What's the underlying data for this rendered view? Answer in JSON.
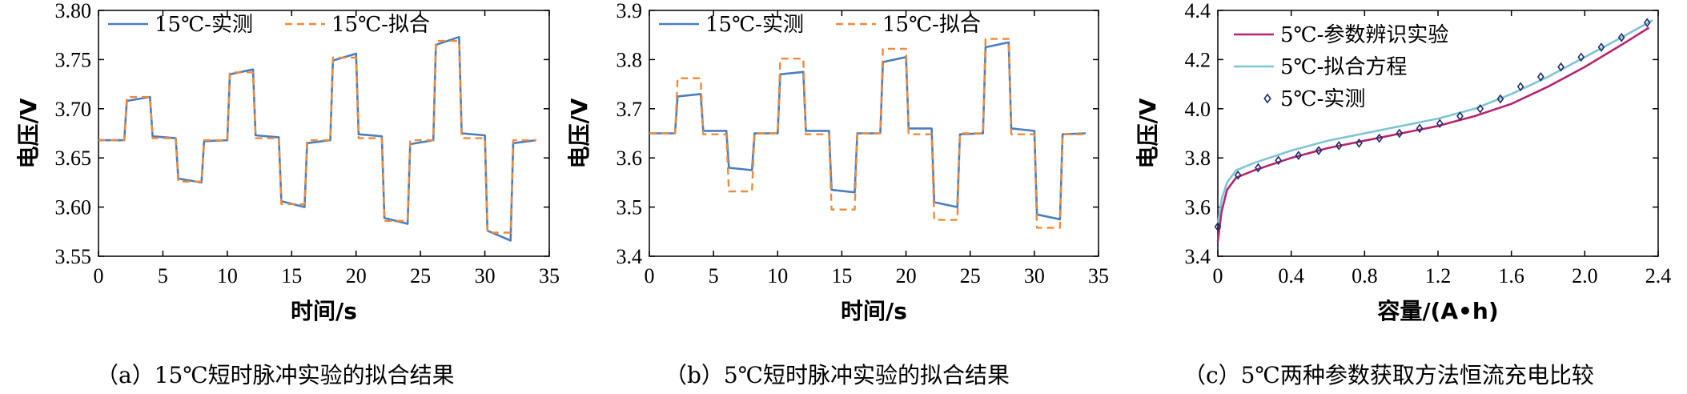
{
  "colors": {
    "measured": "#4a7ebf",
    "fit": "#ee8b3a",
    "exp": "#b5256f",
    "eq": "#7fc4d6",
    "marker": "#1f2f6b"
  },
  "chart_data": [
    {
      "type": "line",
      "caption": "（a）15℃短时脉冲实验的拟合结果",
      "xlabel": "时间/s",
      "ylabel": "电压/V",
      "xlim": [
        0,
        35
      ],
      "ylim": [
        3.55,
        3.8
      ],
      "xticks": [
        "0",
        "5",
        "10",
        "15",
        "20",
        "25",
        "30",
        "35"
      ],
      "yticks": [
        "3.55",
        "3.60",
        "3.65",
        "3.70",
        "3.75",
        "3.80"
      ],
      "legend_position": "top",
      "series": [
        {
          "name": "15℃-实测",
          "style": "solid",
          "color": "#4a7ebf",
          "x": [
            0,
            2,
            2.2,
            4,
            4.2,
            6,
            6.2,
            8,
            8.2,
            10,
            10.2,
            12,
            12.2,
            14,
            14.2,
            16,
            16.2,
            18,
            18.2,
            20,
            20.2,
            22,
            22.2,
            24,
            24.2,
            26,
            26.2,
            28,
            28.2,
            30,
            30.2,
            32,
            32.2,
            34
          ],
          "y": [
            3.668,
            3.668,
            3.708,
            3.712,
            3.672,
            3.67,
            3.629,
            3.625,
            3.667,
            3.668,
            3.735,
            3.74,
            3.673,
            3.671,
            3.606,
            3.6,
            3.665,
            3.668,
            3.749,
            3.756,
            3.674,
            3.672,
            3.589,
            3.583,
            3.664,
            3.668,
            3.765,
            3.773,
            3.675,
            3.673,
            3.576,
            3.566,
            3.665,
            3.668
          ]
        },
        {
          "name": "15℃-拟合",
          "style": "dashed",
          "color": "#ee8b3a",
          "x": [
            0,
            2,
            2.2,
            4,
            4.2,
            6,
            6.2,
            8,
            8.2,
            10,
            10.2,
            12,
            12.2,
            14,
            14.2,
            16,
            16.2,
            18,
            18.2,
            20,
            20.2,
            22,
            22.2,
            24,
            24.2,
            26,
            26.2,
            28,
            28.2,
            30,
            30.2,
            32,
            32.2,
            34
          ],
          "y": [
            3.668,
            3.668,
            3.712,
            3.712,
            3.67,
            3.67,
            3.626,
            3.626,
            3.668,
            3.668,
            3.737,
            3.737,
            3.67,
            3.67,
            3.603,
            3.603,
            3.668,
            3.668,
            3.752,
            3.752,
            3.67,
            3.67,
            3.586,
            3.586,
            3.668,
            3.668,
            3.769,
            3.769,
            3.67,
            3.67,
            3.574,
            3.574,
            3.668,
            3.668
          ]
        }
      ]
    },
    {
      "type": "line",
      "caption": "（b）5℃短时脉冲实验的拟合结果",
      "xlabel": "时间/s",
      "ylabel": "电压/V",
      "xlim": [
        0,
        35
      ],
      "ylim": [
        3.4,
        3.9
      ],
      "xticks": [
        "0",
        "5",
        "10",
        "15",
        "20",
        "25",
        "30",
        "35"
      ],
      "yticks": [
        "3.4",
        "3.5",
        "3.6",
        "3.7",
        "3.8",
        "3.9"
      ],
      "legend_position": "top",
      "series": [
        {
          "name": "15℃-实测",
          "style": "solid",
          "color": "#4a7ebf",
          "x": [
            0,
            2,
            2.2,
            4,
            4.2,
            6,
            6.2,
            8,
            8.2,
            10,
            10.2,
            12,
            12.2,
            14,
            14.2,
            16,
            16.2,
            18,
            18.2,
            20,
            20.2,
            22,
            22.2,
            24,
            24.2,
            26,
            26.2,
            28,
            28.2,
            30,
            30.2,
            32,
            32.2,
            34
          ],
          "y": [
            3.65,
            3.65,
            3.725,
            3.73,
            3.655,
            3.655,
            3.58,
            3.575,
            3.65,
            3.65,
            3.77,
            3.775,
            3.655,
            3.655,
            3.535,
            3.53,
            3.65,
            3.65,
            3.795,
            3.805,
            3.66,
            3.66,
            3.51,
            3.5,
            3.648,
            3.65,
            3.825,
            3.835,
            3.66,
            3.655,
            3.485,
            3.475,
            3.648,
            3.65
          ]
        },
        {
          "name": "15℃-拟合",
          "style": "dashed",
          "color": "#ee8b3a",
          "x": [
            0,
            2,
            2.2,
            4,
            4.2,
            6,
            6.2,
            8,
            8.2,
            10,
            10.2,
            12,
            12.2,
            14,
            14.2,
            16,
            16.2,
            18,
            18.2,
            20,
            20.2,
            22,
            22.2,
            24,
            24.2,
            26,
            26.2,
            28,
            28.2,
            30,
            30.2,
            32,
            32.2,
            34
          ],
          "y": [
            3.65,
            3.65,
            3.762,
            3.762,
            3.648,
            3.648,
            3.532,
            3.532,
            3.65,
            3.65,
            3.802,
            3.802,
            3.648,
            3.648,
            3.495,
            3.495,
            3.65,
            3.65,
            3.822,
            3.822,
            3.648,
            3.648,
            3.474,
            3.474,
            3.65,
            3.65,
            3.842,
            3.842,
            3.648,
            3.648,
            3.458,
            3.458,
            3.648,
            3.648
          ]
        }
      ]
    },
    {
      "type": "line",
      "caption": "（c）5℃两种参数获取方法恒流充电比较",
      "xlabel": "容量/(A•h)",
      "ylabel": "电压/V",
      "xlim": [
        0,
        2.4
      ],
      "ylim": [
        3.4,
        4.4
      ],
      "xticks": [
        "0",
        "0.4",
        "0.8",
        "1.2",
        "1.6",
        "2.0",
        "2.4"
      ],
      "yticks": [
        "3.4",
        "3.6",
        "3.8",
        "4.0",
        "4.2",
        "4.4"
      ],
      "legend_position": "top-left",
      "series": [
        {
          "name": "5℃-参数辨识实验",
          "style": "solid",
          "color": "#b5256f",
          "x": [
            0,
            0.02,
            0.05,
            0.1,
            0.2,
            0.4,
            0.6,
            0.8,
            1.0,
            1.2,
            1.4,
            1.6,
            1.8,
            2.0,
            2.2,
            2.35
          ],
          "y": [
            3.46,
            3.58,
            3.67,
            3.72,
            3.75,
            3.8,
            3.84,
            3.87,
            3.9,
            3.93,
            3.97,
            4.02,
            4.09,
            4.17,
            4.26,
            4.33
          ]
        },
        {
          "name": "5℃-拟合方程",
          "style": "solid",
          "color": "#7fc4d6",
          "x": [
            0,
            0.02,
            0.05,
            0.1,
            0.2,
            0.4,
            0.6,
            0.8,
            1.0,
            1.2,
            1.4,
            1.6,
            1.8,
            2.0,
            2.2,
            2.37
          ],
          "y": [
            3.53,
            3.63,
            3.7,
            3.75,
            3.78,
            3.83,
            3.87,
            3.9,
            3.93,
            3.96,
            4.0,
            4.06,
            4.13,
            4.21,
            4.29,
            4.36
          ]
        },
        {
          "name": "5℃-实测",
          "style": "marker",
          "color": "#1f2f6b",
          "x": [
            0,
            0.11,
            0.22,
            0.33,
            0.44,
            0.55,
            0.66,
            0.77,
            0.88,
            0.99,
            1.1,
            1.21,
            1.32,
            1.43,
            1.54,
            1.65,
            1.76,
            1.87,
            1.98,
            2.09,
            2.2,
            2.34
          ],
          "y": [
            3.52,
            3.73,
            3.76,
            3.79,
            3.81,
            3.83,
            3.85,
            3.86,
            3.88,
            3.9,
            3.92,
            3.94,
            3.97,
            4.0,
            4.04,
            4.09,
            4.13,
            4.17,
            4.21,
            4.25,
            4.29,
            4.35
          ]
        }
      ]
    }
  ]
}
